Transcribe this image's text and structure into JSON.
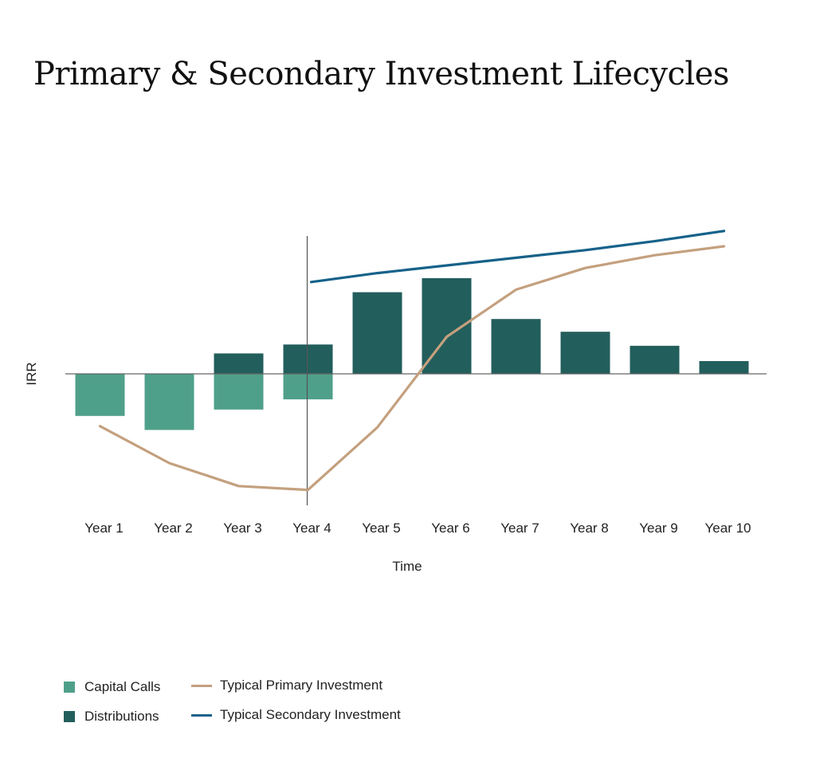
{
  "page": {
    "title": "Primary & Secondary Investment Lifecycles"
  },
  "chart_data": {
    "type": "bar",
    "title": "Primary & Secondary Investment Lifecycles",
    "xlabel": "Time",
    "ylabel": "IRR",
    "categories": [
      "Year 1",
      "Year 2",
      "Year 3",
      "Year 4",
      "Year 5",
      "Year 6",
      "Year 7",
      "Year 8",
      "Year 9",
      "Year 10"
    ],
    "ylim": [
      -100,
      110
    ],
    "grid": false,
    "legend_position": "bottom-left",
    "series": [
      {
        "name": "Capital Calls",
        "type": "bar",
        "color": "#4fa08a",
        "values": [
          -33,
          -44,
          -28,
          -20,
          0,
          0,
          0,
          0,
          0,
          0
        ]
      },
      {
        "name": "Distributions",
        "type": "bar",
        "color": "#225e5c",
        "values": [
          0,
          0,
          16,
          23,
          64,
          75,
          43,
          33,
          22,
          10
        ]
      },
      {
        "name": "Typical Primary Investment",
        "type": "line",
        "color": "#c4a07e",
        "values": [
          -41,
          -70,
          -88,
          -91,
          -42,
          29,
          66,
          83,
          93,
          100
        ]
      },
      {
        "name": "Typical Secondary Investment",
        "type": "line",
        "color": "#16628a",
        "values": [
          null,
          null,
          null,
          72,
          79,
          85,
          91,
          97,
          104,
          112
        ]
      }
    ],
    "annotations": [
      {
        "type": "vertical-line",
        "at_category": "Year 4"
      }
    ]
  }
}
